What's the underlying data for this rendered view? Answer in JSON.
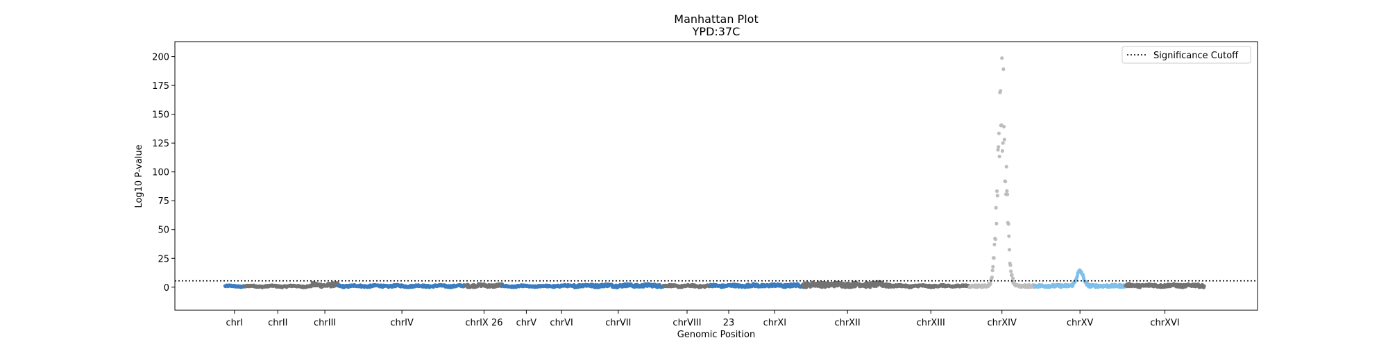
{
  "chart_data": {
    "type": "scatter",
    "title": "Manhattan Plot",
    "subtitle": "YPD:37C",
    "xlabel": "Genomic Position",
    "ylabel": "Log10 P-value",
    "ylim": [
      -20,
      213
    ],
    "yticks": [
      0,
      25,
      50,
      75,
      100,
      125,
      150,
      175,
      200
    ],
    "grid": false,
    "legend": {
      "placement": "top-right",
      "entries": [
        "Significance Cutoff"
      ]
    },
    "significance_cutoff": 5.5,
    "colors": {
      "dark_blue": "#3b7dbf",
      "dark_gray": "#737373",
      "light_gray": "#bdbdbd",
      "light_blue": "#7fbfea",
      "axes": "#000000",
      "cutoff_line": "#000000"
    },
    "chromosomes": [
      {
        "label": "chrI",
        "start": 0,
        "end": 230,
        "color": "dark_blue",
        "peak": 1.5
      },
      {
        "label": "chrII",
        "start": 230,
        "end": 1043,
        "color": "dark_gray",
        "peak": 1.5
      },
      {
        "label": "chrIII",
        "start": 1043,
        "end": 1360,
        "color": "dark_gray",
        "peak": 4
      },
      {
        "label": "chrIV",
        "start": 1360,
        "end": 2892,
        "color": "dark_blue",
        "peak": 2
      },
      {
        "label": "chrIX 26",
        "start": 2892,
        "end": 3331,
        "color": "dark_gray",
        "peak": 3
      },
      {
        "label": "chrV",
        "start": 3331,
        "end": 3908,
        "color": "dark_blue",
        "peak": 1.5
      },
      {
        "label": "chrVI",
        "start": 3908,
        "end": 4178,
        "color": "dark_blue",
        "peak": 2
      },
      {
        "label": "chrVII",
        "start": 4178,
        "end": 5269,
        "color": "dark_blue",
        "peak": 3
      },
      {
        "label": "chrVIII",
        "start": 5269,
        "end": 5831,
        "color": "dark_gray",
        "peak": 2
      },
      {
        "label": "23",
        "start": 5831,
        "end": 6270,
        "color": "dark_blue",
        "peak": 2.5
      },
      {
        "label": "chrXI",
        "start": 6270,
        "end": 6937,
        "color": "dark_blue",
        "peak": 3
      },
      {
        "label": "chrXII",
        "start": 6937,
        "end": 8015,
        "color": "dark_gray",
        "peak": 5
      },
      {
        "label": "chrXIII",
        "start": 8015,
        "end": 8939,
        "color": "dark_gray",
        "peak": 2
      },
      {
        "label": "chrXIV",
        "start": 8939,
        "end": 9723,
        "color": "light_gray",
        "peak": 203
      },
      {
        "label": "chrXV",
        "start": 9723,
        "end": 10814,
        "color": "light_blue",
        "peak": 13
      },
      {
        "label": "chrXVI",
        "start": 10814,
        "end": 11762,
        "color": "dark_gray",
        "peak": 3
      }
    ],
    "xlim": [
      -600,
      12400
    ],
    "tick_positions": [
      115,
      636,
      1201,
      2126,
      3112,
      3620,
      4043,
      4724,
      5550,
      6050,
      6603,
      7476,
      8477,
      9331,
      10268,
      11288
    ]
  }
}
